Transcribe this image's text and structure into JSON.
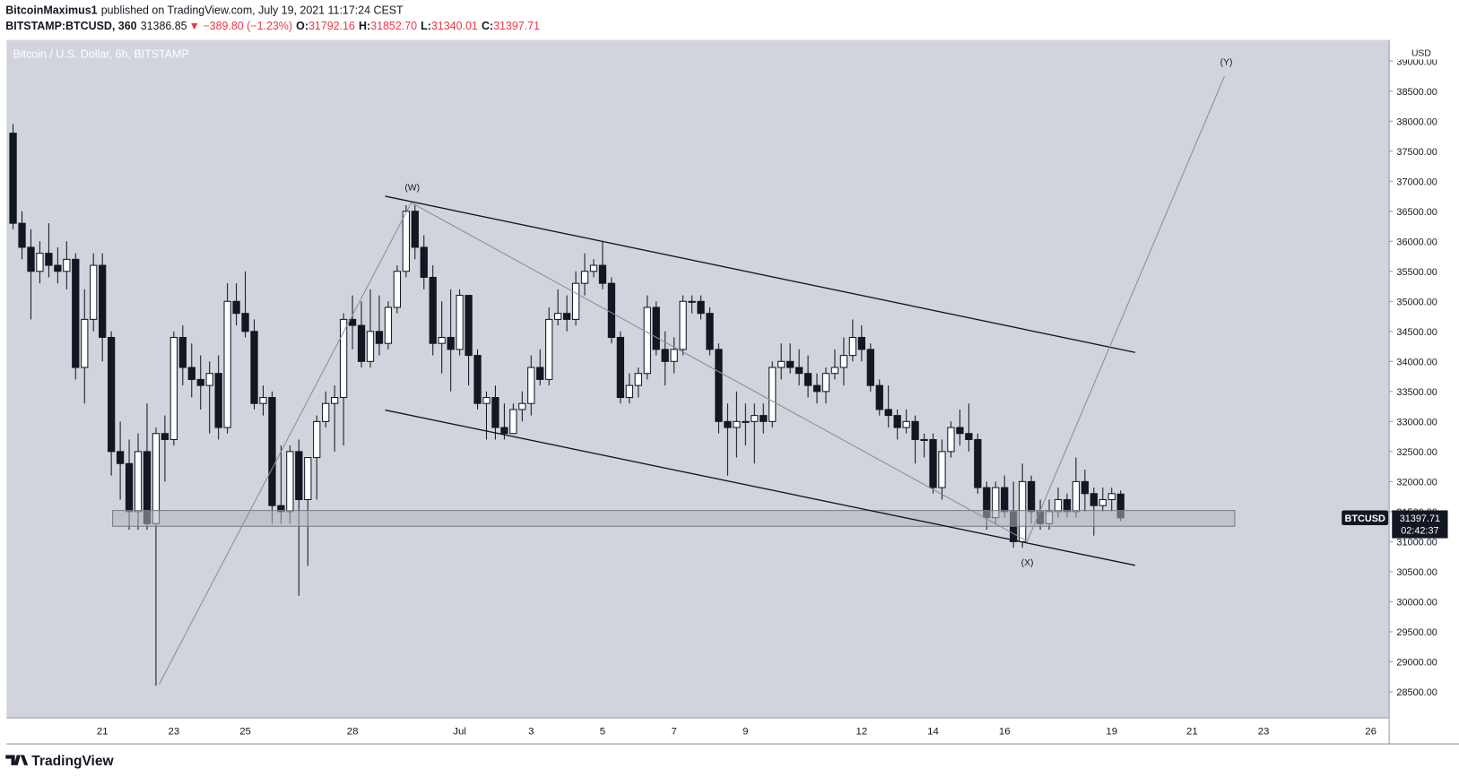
{
  "header": {
    "author": "BitcoinMaximus1",
    "published": "published on TradingView.com, July 19, 2021 11:17:24 CEST"
  },
  "ticker": {
    "symbol": "BITSTAMP:BTCUSD, 360",
    "last": "31386.85",
    "change": "▼ −389.80 (−1.23%)",
    "ohlc": [
      {
        "label": "O:",
        "value": "31792.16"
      },
      {
        "label": "H:",
        "value": "31852.70"
      },
      {
        "label": "L:",
        "value": "31340.01"
      },
      {
        "label": "C:",
        "value": "31397.71"
      }
    ]
  },
  "chart_data": {
    "type": "candlestick",
    "title": "Bitcoin / U.S. Dollar, 6h, BITSTAMP",
    "y_axis_label": "USD",
    "up_color": "#ffffff",
    "down_color": "#131722",
    "grid": false,
    "annotations": [
      "(W)",
      "(X)",
      "(Y)"
    ],
    "price_label": {
      "name": "BTCUSD",
      "value": 31397.71,
      "countdown": "02:42:37"
    },
    "ylim": [
      28067,
      39351
    ],
    "yticks": [
      {
        "value": 28500,
        "label": "28500.00"
      },
      {
        "value": 29000,
        "label": "29000.00"
      },
      {
        "value": 29500,
        "label": "29500.00"
      },
      {
        "value": 30000,
        "label": "30000.00"
      },
      {
        "value": 30500,
        "label": "30500.00"
      },
      {
        "value": 31000,
        "label": "31000.00"
      },
      {
        "value": 31500,
        "label": "31500.00"
      },
      {
        "value": 32000,
        "label": "32000.00"
      },
      {
        "value": 32500,
        "label": "32500.00"
      },
      {
        "value": 33000,
        "label": "33000.00"
      },
      {
        "value": 33500,
        "label": "33500.00"
      },
      {
        "value": 34000,
        "label": "34000.00"
      },
      {
        "value": 34500,
        "label": "34500.00"
      },
      {
        "value": 35000,
        "label": "35000.00"
      },
      {
        "value": 35500,
        "label": "35500.00"
      },
      {
        "value": 36000,
        "label": "36000.00"
      },
      {
        "value": 36500,
        "label": "36500.00"
      },
      {
        "value": 37000,
        "label": "37000.00"
      },
      {
        "value": 37500,
        "label": "37500.00"
      },
      {
        "value": 38000,
        "label": "38000.00"
      },
      {
        "value": 38500,
        "label": "38500.00"
      },
      {
        "value": 39000,
        "label": "39000.00"
      }
    ],
    "categories": [
      null,
      null,
      null,
      null,
      null,
      null,
      null,
      null,
      null,
      null,
      "21",
      null,
      null,
      null,
      null,
      null,
      null,
      null,
      "23",
      null,
      null,
      null,
      null,
      null,
      null,
      null,
      "25",
      null,
      null,
      null,
      null,
      null,
      null,
      null,
      null,
      null,
      null,
      null,
      "28",
      null,
      null,
      null,
      null,
      null,
      null,
      null,
      null,
      null,
      null,
      null,
      "Jul",
      null,
      null,
      null,
      null,
      null,
      null,
      null,
      "3",
      null,
      null,
      null,
      null,
      null,
      null,
      null,
      "5",
      null,
      null,
      null,
      null,
      null,
      null,
      null,
      "7",
      null,
      null,
      null,
      null,
      null,
      null,
      null,
      "9",
      null,
      null,
      null,
      null,
      null,
      null,
      null,
      null,
      null,
      null,
      null,
      null,
      "12",
      null,
      null,
      null,
      null,
      null,
      null,
      null,
      "14",
      null,
      null,
      null,
      null,
      null,
      null,
      null,
      "16",
      null,
      null,
      null,
      null,
      null,
      null,
      null,
      null,
      null,
      null,
      null,
      "19",
      null,
      null,
      null,
      null,
      null,
      null,
      null,
      null,
      "21",
      null,
      null,
      null,
      null,
      null,
      null,
      null,
      "23",
      null,
      null,
      null,
      null,
      null,
      null,
      null,
      null,
      null,
      null,
      null,
      "26",
      null
    ],
    "candles": [
      [
        37800,
        37950,
        36200,
        36300
      ],
      [
        36300,
        36500,
        35700,
        35900
      ],
      [
        35900,
        36200,
        34700,
        35500
      ],
      [
        35500,
        36000,
        35300,
        35800
      ],
      [
        35800,
        36300,
        35400,
        35600
      ],
      [
        35600,
        35900,
        35300,
        35500
      ],
      [
        35500,
        36000,
        35200,
        35700
      ],
      [
        35700,
        35800,
        33700,
        33900
      ],
      [
        33900,
        35200,
        33300,
        34700
      ],
      [
        34700,
        35800,
        34500,
        35600
      ],
      [
        35600,
        35800,
        34000,
        34400
      ],
      [
        34400,
        34500,
        32100,
        32500
      ],
      [
        32500,
        33000,
        31700,
        32300
      ],
      [
        32300,
        32700,
        31200,
        31500
      ],
      [
        31500,
        32800,
        31200,
        32500
      ],
      [
        32500,
        33300,
        31200,
        31300
      ],
      [
        31300,
        32900,
        28600,
        32800
      ],
      [
        32800,
        33100,
        32000,
        32700
      ],
      [
        32700,
        34500,
        32600,
        34400
      ],
      [
        34400,
        34600,
        33600,
        33900
      ],
      [
        33900,
        34300,
        33400,
        33700
      ],
      [
        33700,
        34100,
        33200,
        33600
      ],
      [
        33600,
        34000,
        32800,
        33800
      ],
      [
        33800,
        34100,
        32700,
        32900
      ],
      [
        32900,
        35300,
        32800,
        35000
      ],
      [
        35000,
        35300,
        34600,
        34800
      ],
      [
        34800,
        35500,
        34400,
        34500
      ],
      [
        34500,
        34700,
        33200,
        33300
      ],
      [
        33300,
        33600,
        33100,
        33400
      ],
      [
        33400,
        33500,
        31300,
        31600
      ],
      [
        31600,
        32600,
        31300,
        31500
      ],
      [
        31500,
        32600,
        31300,
        32500
      ],
      [
        32500,
        32700,
        30100,
        31700
      ],
      [
        31700,
        32400,
        30600,
        32400
      ],
      [
        32400,
        33100,
        31700,
        33000
      ],
      [
        33000,
        33500,
        32900,
        33300
      ],
      [
        33300,
        33600,
        32500,
        33400
      ],
      [
        33400,
        34800,
        32600,
        34700
      ],
      [
        34700,
        35100,
        34200,
        34600
      ],
      [
        34600,
        35000,
        33900,
        34000
      ],
      [
        34000,
        35200,
        33900,
        34500
      ],
      [
        34500,
        35100,
        34100,
        34300
      ],
      [
        34300,
        35000,
        34200,
        34900
      ],
      [
        34900,
        35600,
        34800,
        35500
      ],
      [
        35500,
        36600,
        35400,
        36500
      ],
      [
        36500,
        36600,
        35700,
        35900
      ],
      [
        35900,
        36100,
        35200,
        35400
      ],
      [
        35400,
        35600,
        34100,
        34300
      ],
      [
        34300,
        35000,
        33800,
        34400
      ],
      [
        34400,
        35200,
        33500,
        34200
      ],
      [
        34200,
        35200,
        34100,
        35100
      ],
      [
        35100,
        35100,
        33600,
        34100
      ],
      [
        34100,
        34200,
        33200,
        33300
      ],
      [
        33300,
        33500,
        32700,
        33400
      ],
      [
        33400,
        33600,
        32700,
        32900
      ],
      [
        32900,
        33300,
        32700,
        32800
      ],
      [
        32800,
        33300,
        32800,
        33200
      ],
      [
        33200,
        33500,
        33000,
        33300
      ],
      [
        33300,
        34100,
        33100,
        33900
      ],
      [
        33900,
        34200,
        33600,
        33700
      ],
      [
        33700,
        34900,
        33600,
        34700
      ],
      [
        34700,
        35200,
        34600,
        34800
      ],
      [
        34800,
        35100,
        34500,
        34700
      ],
      [
        34700,
        35500,
        34600,
        35300
      ],
      [
        35300,
        35800,
        35100,
        35500
      ],
      [
        35500,
        35700,
        35400,
        35600
      ],
      [
        35600,
        36000,
        35200,
        35300
      ],
      [
        35300,
        35400,
        34300,
        34400
      ],
      [
        34400,
        34500,
        33300,
        33400
      ],
      [
        33400,
        33800,
        33300,
        33600
      ],
      [
        33600,
        33900,
        33400,
        33800
      ],
      [
        33800,
        35100,
        33700,
        34900
      ],
      [
        34900,
        35000,
        34100,
        34200
      ],
      [
        34200,
        34500,
        33600,
        34000
      ],
      [
        34000,
        34400,
        33800,
        34200
      ],
      [
        34200,
        35100,
        34100,
        35000
      ],
      [
        35000,
        35100,
        34800,
        35000
      ],
      [
        35000,
        35100,
        34700,
        34800
      ],
      [
        34800,
        34900,
        34100,
        34200
      ],
      [
        34200,
        34300,
        32800,
        33000
      ],
      [
        33000,
        33300,
        32100,
        32900
      ],
      [
        32900,
        33500,
        32400,
        33000
      ],
      [
        33000,
        33300,
        32600,
        33000
      ],
      [
        33000,
        33300,
        32300,
        33100
      ],
      [
        33100,
        33300,
        32800,
        33000
      ],
      [
        33000,
        34000,
        32900,
        33900
      ],
      [
        33900,
        34300,
        33700,
        34000
      ],
      [
        34000,
        34300,
        33800,
        33900
      ],
      [
        33900,
        34200,
        33600,
        33800
      ],
      [
        33800,
        34100,
        33400,
        33600
      ],
      [
        33600,
        33800,
        33300,
        33500
      ],
      [
        33500,
        33900,
        33300,
        33800
      ],
      [
        33800,
        34200,
        33700,
        33900
      ],
      [
        33900,
        34400,
        33600,
        34100
      ],
      [
        34100,
        34700,
        34000,
        34400
      ],
      [
        34400,
        34600,
        34000,
        34200
      ],
      [
        34200,
        34300,
        33500,
        33600
      ],
      [
        33600,
        33700,
        33100,
        33200
      ],
      [
        33200,
        33600,
        32900,
        33100
      ],
      [
        33100,
        33200,
        32700,
        32900
      ],
      [
        32900,
        33200,
        32800,
        33000
      ],
      [
        33000,
        33100,
        32300,
        32700
      ],
      [
        32700,
        32800,
        32400,
        32700
      ],
      [
        32700,
        32800,
        31800,
        31900
      ],
      [
        31900,
        32700,
        31700,
        32500
      ],
      [
        32500,
        33000,
        32400,
        32900
      ],
      [
        32900,
        33200,
        32600,
        32800
      ],
      [
        32800,
        33300,
        32500,
        32700
      ],
      [
        32700,
        32800,
        31800,
        31900
      ],
      [
        31900,
        32000,
        31200,
        31400
      ],
      [
        31400,
        32000,
        31300,
        31900
      ],
      [
        31900,
        32100,
        31400,
        31500
      ],
      [
        31500,
        32000,
        30900,
        31000
      ],
      [
        31000,
        32300,
        30900,
        32000
      ],
      [
        32000,
        32100,
        31300,
        31500
      ],
      [
        31500,
        31700,
        31200,
        31300
      ],
      [
        31300,
        31700,
        31200,
        31500
      ],
      [
        31500,
        31900,
        31400,
        31700
      ],
      [
        31700,
        31800,
        31400,
        31500
      ],
      [
        31500,
        32400,
        31400,
        32000
      ],
      [
        32000,
        32200,
        31500,
        31800
      ],
      [
        31800,
        31900,
        31100,
        31600
      ],
      [
        31600,
        31900,
        31500,
        31700
      ],
      [
        31700,
        31900,
        31500,
        31800
      ],
      [
        31792.16,
        31852.7,
        31340.01,
        31397.71
      ],
      null,
      null,
      null,
      null,
      null,
      null,
      null,
      null,
      null,
      null,
      null,
      null,
      null,
      null,
      null,
      null,
      null,
      null,
      null,
      null,
      null,
      null,
      null,
      null,
      null,
      null,
      null,
      null,
      null
    ]
  },
  "footer": {
    "logo": "TradingView"
  }
}
